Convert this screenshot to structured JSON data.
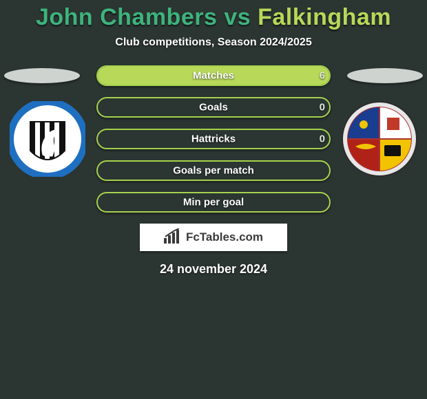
{
  "title": {
    "player1": "John Chambers",
    "vs": "vs",
    "player2": "Falkingham"
  },
  "subtitle": "Club competitions, Season 2024/2025",
  "colors": {
    "p1": "#3eb37c",
    "p2": "#b7d859",
    "bg": "#2b3532",
    "border": "#a6d24d"
  },
  "stats": [
    {
      "label": "Matches",
      "left_val": 0,
      "right_val": 6,
      "left_pct": 0,
      "right_pct": 100,
      "show_right_val": true
    },
    {
      "label": "Goals",
      "left_val": 0,
      "right_val": 0,
      "left_pct": 0,
      "right_pct": 0,
      "show_right_val": true
    },
    {
      "label": "Hattricks",
      "left_val": 0,
      "right_val": 0,
      "left_pct": 0,
      "right_pct": 0,
      "show_right_val": true
    },
    {
      "label": "Goals per match",
      "left_val": 0,
      "right_val": 0,
      "left_pct": 0,
      "right_pct": 0,
      "show_right_val": false
    },
    {
      "label": "Min per goal",
      "left_val": 0,
      "right_val": 0,
      "left_pct": 0,
      "right_pct": 0,
      "show_right_val": false
    }
  ],
  "brand": "FcTables.com",
  "date": "24 november 2024"
}
